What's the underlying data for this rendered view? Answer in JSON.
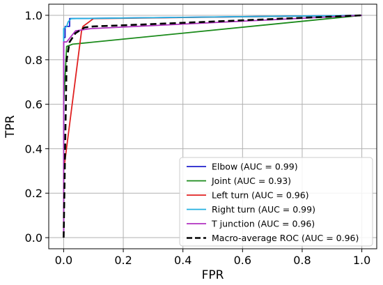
{
  "chart_data": {
    "type": "line",
    "xlabel": "FPR",
    "ylabel": "TPR",
    "xlim": [
      -0.05,
      1.05
    ],
    "ylim": [
      -0.05,
      1.05
    ],
    "x_ticks": [
      "0.0",
      "0.2",
      "0.4",
      "0.6",
      "0.8",
      "1.0"
    ],
    "y_ticks": [
      "0.0",
      "0.2",
      "0.4",
      "0.6",
      "0.8",
      "1.0"
    ],
    "grid": true,
    "legend_position": "lower-right",
    "series": [
      {
        "name": "Elbow (AUC = 0.99)",
        "color": "#1f1fcc",
        "dash": "solid",
        "x": [
          0.0,
          0.0,
          0.005,
          0.005,
          0.02,
          0.02,
          1.0
        ],
        "y": [
          0.0,
          0.9,
          0.9,
          0.95,
          0.95,
          0.985,
          1.0
        ]
      },
      {
        "name": "Joint (AUC = 0.93)",
        "color": "#1a8a1a",
        "dash": "solid",
        "x": [
          0.0,
          0.0,
          0.01,
          0.03,
          1.0
        ],
        "y": [
          0.0,
          0.6,
          0.86,
          0.87,
          1.0
        ]
      },
      {
        "name": "Left turn (AUC = 0.96)",
        "color": "#e02020",
        "dash": "solid",
        "x": [
          0.0,
          0.0,
          0.06,
          0.065,
          0.1,
          1.0
        ],
        "y": [
          0.0,
          0.3,
          0.93,
          0.95,
          0.985,
          1.0
        ]
      },
      {
        "name": "Right turn (AUC = 0.99)",
        "color": "#22b0e0",
        "dash": "solid",
        "x": [
          0.0,
          0.0,
          0.01,
          0.015,
          0.025,
          1.0
        ],
        "y": [
          0.0,
          0.94,
          0.95,
          0.97,
          0.985,
          1.0
        ]
      },
      {
        "name": "T junction (AUC = 0.96)",
        "color": "#b030c0",
        "dash": "solid",
        "x": [
          0.0,
          0.0,
          0.01,
          0.04,
          0.09,
          1.0
        ],
        "y": [
          0.0,
          0.88,
          0.88,
          0.93,
          0.94,
          1.0
        ]
      },
      {
        "name": "Macro-average ROC (AUC = 0.96)",
        "color": "#000000",
        "dash": "dashed",
        "x": [
          0.0,
          0.005,
          0.01,
          0.02,
          0.04,
          0.07,
          0.1,
          0.2,
          1.0
        ],
        "y": [
          0.0,
          0.4,
          0.8,
          0.88,
          0.92,
          0.945,
          0.95,
          0.955,
          1.0
        ]
      }
    ]
  }
}
